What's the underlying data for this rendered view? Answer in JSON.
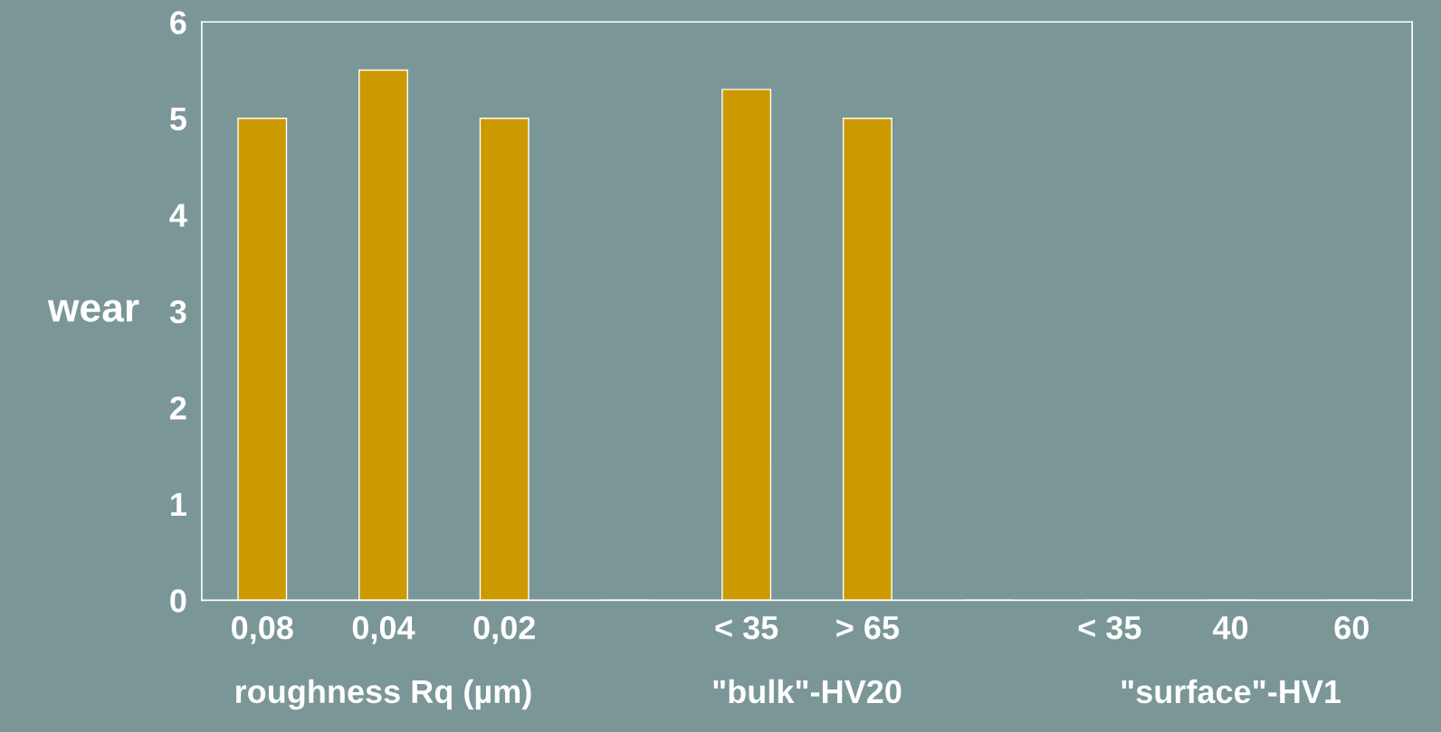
{
  "chart_data": {
    "type": "bar",
    "ylabel": "wear",
    "categories": [
      "0,08",
      "0,04",
      "0,02",
      null,
      "< 35",
      "> 65",
      null,
      "< 35",
      "40",
      "60"
    ],
    "values": [
      5,
      5.5,
      5,
      0,
      5.3,
      5,
      0,
      0,
      0,
      0
    ],
    "color": "#cc9900",
    "ylim": [
      0,
      6
    ],
    "yticks": [
      0,
      1,
      2,
      3,
      4,
      5,
      6
    ],
    "grid": false,
    "legend": false,
    "annotations": [
      "roughness Rq (µm)",
      "\"bulk\"-HV20",
      "\"surface\"-HV1"
    ]
  }
}
